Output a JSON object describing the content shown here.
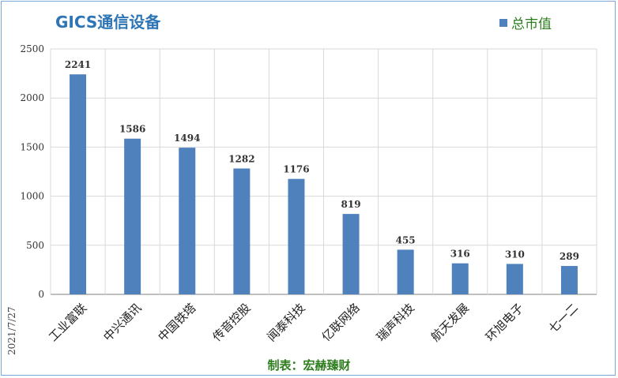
{
  "chart_data": {
    "type": "bar",
    "title": "GICS通信设备",
    "legend": "总市值",
    "legend_position": "top-right",
    "categories": [
      "工业富联",
      "中兴通讯",
      "中国铁塔",
      "传音控股",
      "闻泰科技",
      "亿联网络",
      "瑞声科技",
      "航天发展",
      "环旭电子",
      "七一二"
    ],
    "values": [
      2241,
      1586,
      1494,
      1282,
      1176,
      819,
      455,
      316,
      310,
      289
    ],
    "ylim": [
      0,
      2500
    ],
    "yticks": [
      0,
      500,
      1000,
      1500,
      2000,
      2500
    ],
    "grid": true,
    "bar_color": "#4f81bd"
  },
  "date_label": "2021/7/27",
  "footer": "制表：宏赫臻财"
}
